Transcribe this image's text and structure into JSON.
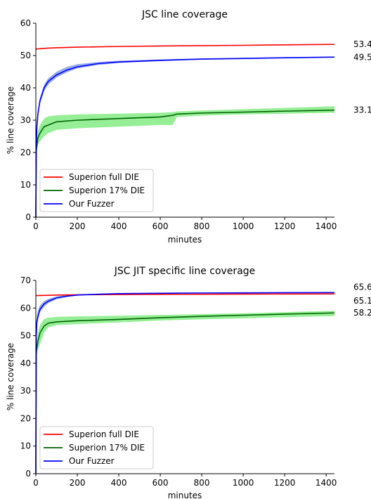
{
  "chart_data": [
    {
      "type": "line",
      "title": "JSC line coverage",
      "xlabel": "minutes",
      "ylabel": "% line coverage",
      "xlim": [
        0,
        1440
      ],
      "ylim": [
        0,
        60
      ],
      "xticks": [
        0,
        200,
        400,
        600,
        800,
        1000,
        1200,
        1400
      ],
      "yticks": [
        0,
        10,
        20,
        30,
        40,
        50,
        60
      ],
      "grid": false,
      "legend_position": "bottom-left",
      "series": [
        {
          "name": "Superion full DIE",
          "color": "#ff0000",
          "final_label": "53.45",
          "x": [
            0,
            20,
            60,
            100,
            200,
            400,
            600,
            800,
            1000,
            1200,
            1440
          ],
          "y": [
            52.0,
            52.1,
            52.3,
            52.4,
            52.6,
            52.8,
            52.95,
            53.05,
            53.15,
            53.3,
            53.45
          ],
          "band_lower": [
            51.9,
            52.0,
            52.2,
            52.3,
            52.5,
            52.7,
            52.85,
            52.95,
            53.05,
            53.2,
            53.35
          ],
          "band_upper": [
            52.1,
            52.2,
            52.4,
            52.5,
            52.7,
            52.9,
            53.05,
            53.15,
            53.25,
            53.4,
            53.55
          ]
        },
        {
          "name": "Superion 17% DIE",
          "color": "#006400",
          "band_color": "#90ee90",
          "final_label": "33.11",
          "x": [
            0,
            2,
            10,
            20,
            40,
            60,
            100,
            200,
            400,
            600,
            660,
            680,
            800,
            1000,
            1200,
            1440
          ],
          "y": [
            0,
            20.5,
            24.5,
            26,
            28,
            28.5,
            29.5,
            30.0,
            30.5,
            31.0,
            31.5,
            31.9,
            32.2,
            32.5,
            32.8,
            33.11
          ],
          "band_lower": [
            0,
            19.5,
            22.5,
            23.5,
            25,
            26,
            27,
            27.5,
            28.0,
            28.5,
            28.5,
            31.0,
            31.4,
            31.8,
            32.0,
            32.3
          ],
          "band_upper": [
            0,
            22,
            26.5,
            28.5,
            30.5,
            31.2,
            31.5,
            31.8,
            32.0,
            32.3,
            32.5,
            32.7,
            33.0,
            33.4,
            33.8,
            34.3
          ]
        },
        {
          "name": "Our Fuzzer",
          "color": "#0000ff",
          "band_color": "#8fa8e8",
          "final_label": "49.51",
          "x": [
            0,
            2,
            5,
            10,
            20,
            40,
            60,
            100,
            150,
            200,
            300,
            400,
            600,
            800,
            1000,
            1200,
            1440
          ],
          "y": [
            0,
            21,
            28,
            32,
            36,
            40,
            42,
            44,
            45.5,
            46.5,
            47.5,
            48.0,
            48.5,
            48.9,
            49.1,
            49.3,
            49.51
          ],
          "band_lower": [
            0,
            20,
            27,
            31,
            35,
            39,
            41,
            43.2,
            44.8,
            46.0,
            47.1,
            47.7,
            48.3,
            48.7,
            48.9,
            49.1,
            49.3
          ],
          "band_upper": [
            0,
            22,
            29,
            33,
            37,
            41,
            43,
            45,
            46.5,
            47.3,
            48.0,
            48.4,
            48.8,
            49.1,
            49.3,
            49.5,
            49.7
          ]
        }
      ]
    },
    {
      "type": "line",
      "title": "JSC JIT specific line coverage",
      "xlabel": "minutes",
      "ylabel": "% line coverage",
      "xlim": [
        0,
        1440
      ],
      "ylim": [
        0,
        70
      ],
      "xticks": [
        0,
        200,
        400,
        600,
        800,
        1000,
        1200,
        1400
      ],
      "yticks": [
        0,
        10,
        20,
        30,
        40,
        50,
        60,
        70
      ],
      "grid": false,
      "legend_position": "bottom-left",
      "series": [
        {
          "name": "Superion full DIE",
          "color": "#ff0000",
          "final_label": "65.11",
          "x": [
            0,
            20,
            60,
            100,
            200,
            400,
            600,
            800,
            1000,
            1200,
            1440
          ],
          "y": [
            64.5,
            64.55,
            64.6,
            64.7,
            64.8,
            64.9,
            64.95,
            65.0,
            65.05,
            65.08,
            65.11
          ],
          "band_lower": [
            64.4,
            64.45,
            64.5,
            64.6,
            64.7,
            64.8,
            64.85,
            64.9,
            64.95,
            64.98,
            65.01
          ],
          "band_upper": [
            64.6,
            64.65,
            64.7,
            64.8,
            64.9,
            65.0,
            65.05,
            65.1,
            65.15,
            65.18,
            65.21
          ]
        },
        {
          "name": "Superion 17% DIE",
          "color": "#006400",
          "band_color": "#90ee90",
          "final_label": "58.23",
          "x": [
            0,
            2,
            10,
            20,
            40,
            60,
            100,
            200,
            400,
            600,
            800,
            1000,
            1200,
            1440
          ],
          "y": [
            0,
            44,
            48,
            51,
            53.5,
            54.5,
            55,
            55.4,
            55.9,
            56.5,
            57.0,
            57.4,
            57.8,
            58.23
          ],
          "band_lower": [
            0,
            42,
            45,
            47,
            51,
            53,
            53.8,
            54.2,
            54.8,
            55.5,
            55.9,
            56.3,
            56.7,
            57.1
          ],
          "band_upper": [
            0,
            46,
            51,
            54,
            56,
            56.5,
            56.8,
            57.0,
            57.2,
            57.5,
            57.8,
            58.1,
            58.5,
            59.0
          ]
        },
        {
          "name": "Our Fuzzer",
          "color": "#0000ff",
          "band_color": "#8fa8e8",
          "final_label": "65.60",
          "x": [
            0,
            2,
            5,
            10,
            20,
            40,
            60,
            100,
            150,
            200,
            300,
            400,
            600,
            800,
            1000,
            1200,
            1440
          ],
          "y": [
            0,
            50,
            55,
            57,
            59.5,
            61.5,
            62.5,
            63.7,
            64.3,
            64.7,
            65.0,
            65.2,
            65.35,
            65.45,
            65.5,
            65.55,
            65.6
          ],
          "band_lower": [
            0,
            48,
            53,
            55.5,
            58.5,
            60.5,
            61.8,
            63.2,
            64.0,
            64.5,
            64.85,
            65.05,
            65.25,
            65.35,
            65.4,
            65.45,
            65.5
          ],
          "band_upper": [
            0,
            52,
            57,
            59,
            61,
            62.5,
            63.3,
            64.2,
            64.7,
            64.95,
            65.2,
            65.35,
            65.45,
            65.55,
            65.6,
            65.65,
            65.7
          ]
        }
      ]
    }
  ]
}
